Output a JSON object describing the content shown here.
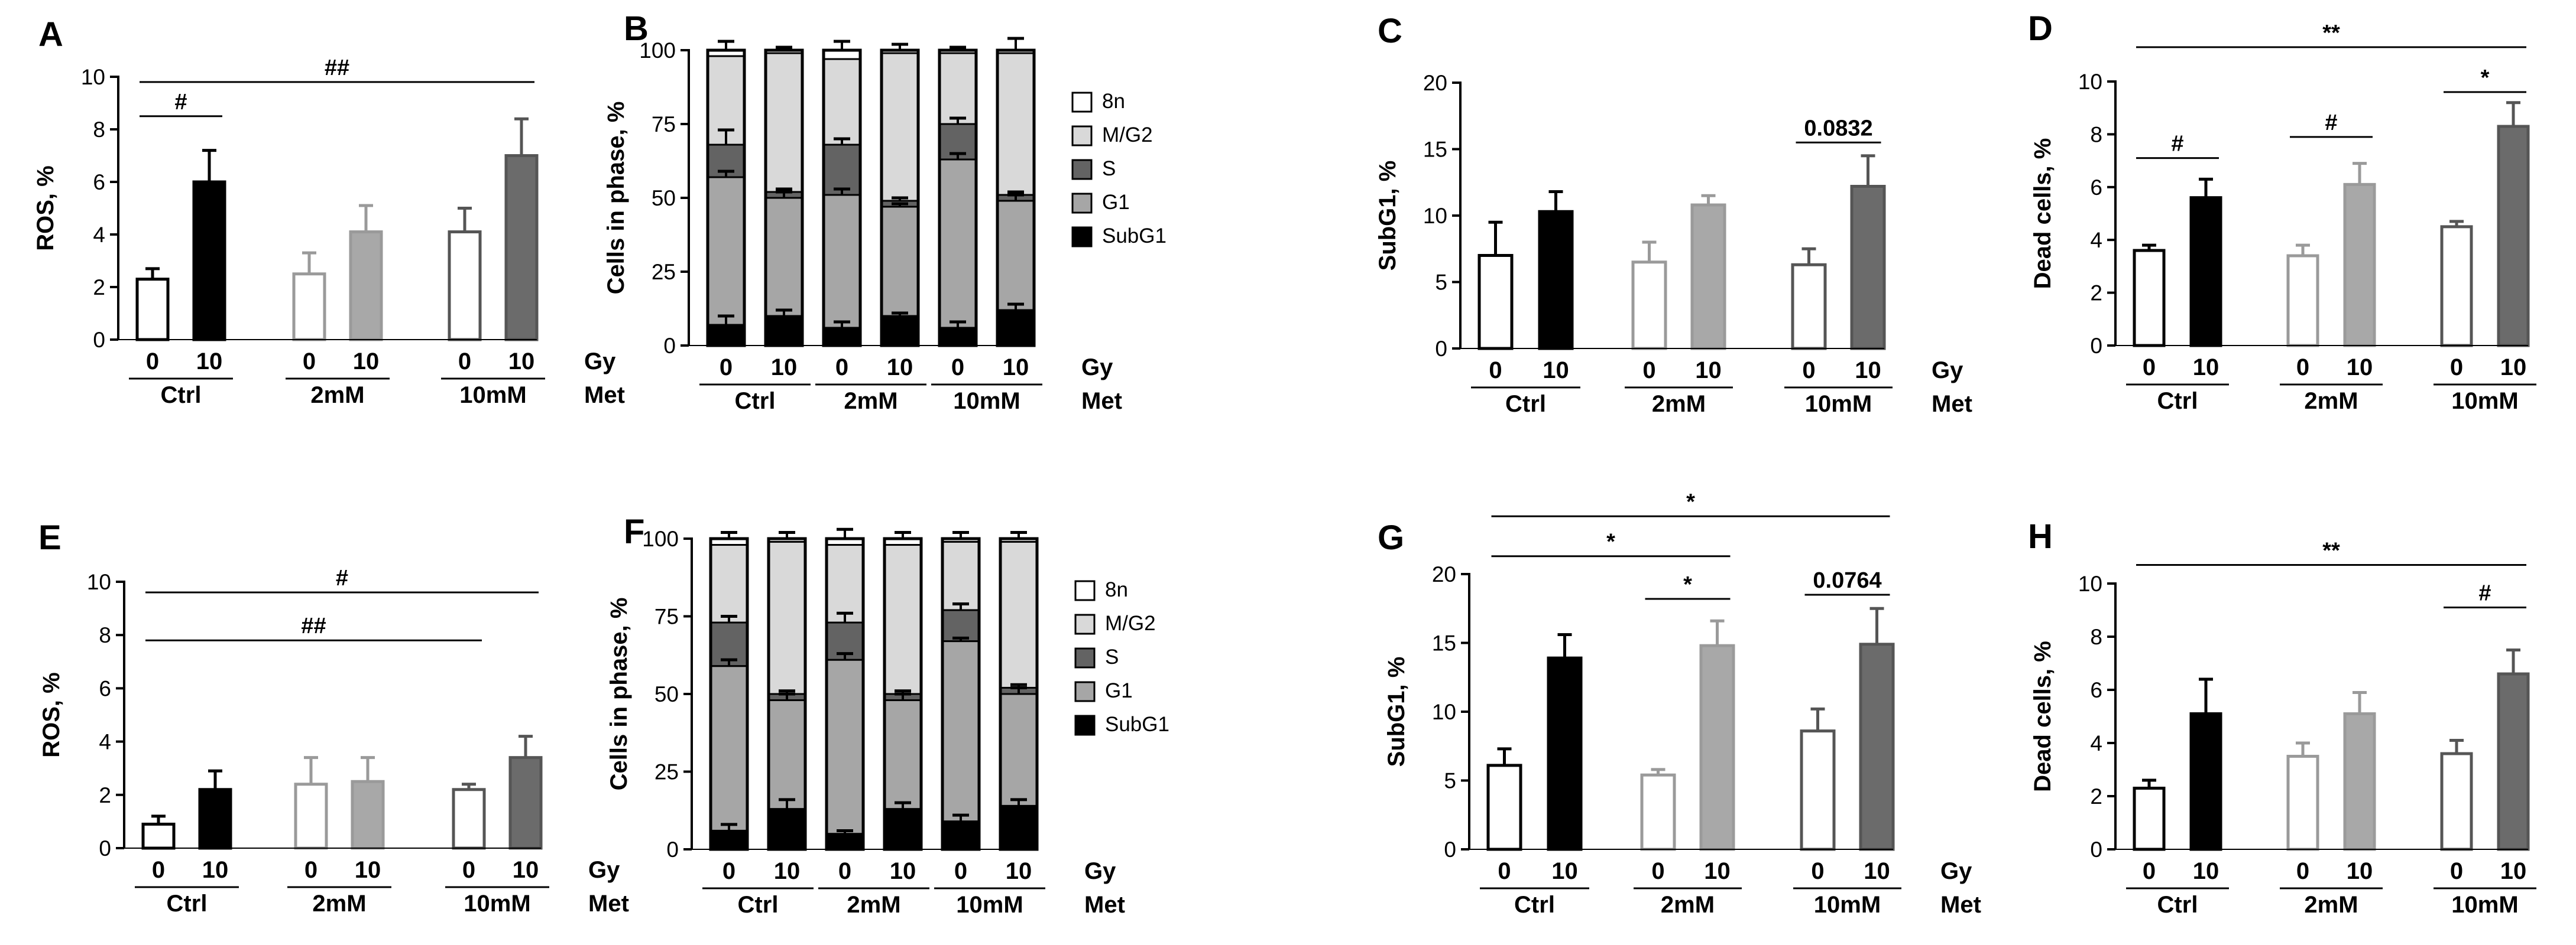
{
  "figure": {
    "x_row_labels": {
      "dose": "Gy",
      "group": "Met"
    },
    "dose_labels": [
      "0",
      "10"
    ],
    "group_labels": [
      "Ctrl",
      "2mM",
      "10mM"
    ],
    "colors": {
      "ctrl_irradiated": "#000000",
      "met2_irradiated": "#a8a8a8",
      "met10_irradiated": "#6b6b6b",
      "control_fill": "#ffffff",
      "stack_8n": "#ffffff",
      "stack_mg2": "#d9d9d9",
      "stack_s": "#636363",
      "stack_g1": "#a6a6a6",
      "stack_subg1": "#000000"
    }
  },
  "chart_data": [
    {
      "panel": "A",
      "type": "bar",
      "ylabel": "ROS, %",
      "ylim": [
        0,
        10
      ],
      "yticks": [
        0,
        2,
        4,
        6,
        8,
        10
      ],
      "values": [
        2.3,
        6.0,
        2.5,
        4.1,
        4.1,
        7.0
      ],
      "errors": [
        0.4,
        1.2,
        0.8,
        1.0,
        0.9,
        1.4
      ],
      "annotations": [
        {
          "from": 0,
          "to": 1,
          "y": 8.5,
          "label": "#"
        },
        {
          "from": 0,
          "to": 5,
          "y": 9.8,
          "label": "##"
        }
      ]
    },
    {
      "panel": "B",
      "type": "stacked-bar",
      "ylabel": "Cells in phase, %",
      "ylim": [
        0,
        100
      ],
      "yticks": [
        0,
        25,
        50,
        75,
        100
      ],
      "legend": [
        "8n",
        "M/G2",
        "S",
        "G1",
        "SubG1"
      ],
      "stacks": [
        {
          "subg1": 7,
          "g1": 50,
          "s": 11,
          "mg2": 30,
          "n8": 2
        },
        {
          "subg1": 10,
          "g1": 40,
          "s": 2,
          "mg2": 47,
          "n8": 1
        },
        {
          "subg1": 6,
          "g1": 45,
          "s": 17,
          "mg2": 29,
          "n8": 3
        },
        {
          "subg1": 10,
          "g1": 37,
          "s": 2,
          "mg2": 50,
          "n8": 1
        },
        {
          "subg1": 6,
          "g1": 57,
          "s": 12,
          "mg2": 24,
          "n8": 1
        },
        {
          "subg1": 12,
          "g1": 37,
          "s": 2,
          "mg2": 48,
          "n8": 1
        }
      ],
      "errors": {
        "subg1": [
          3,
          2,
          2,
          1,
          2,
          2
        ],
        "g1": [
          2,
          2,
          2,
          1,
          2,
          2
        ],
        "s": [
          5,
          1,
          2,
          1,
          2,
          1
        ],
        "top": [
          3,
          1,
          3,
          2,
          1,
          4
        ]
      },
      "annotations": []
    },
    {
      "panel": "C",
      "type": "bar",
      "ylabel": "SubG1, %",
      "ylim": [
        0,
        20
      ],
      "yticks": [
        0,
        5,
        10,
        15,
        20
      ],
      "values": [
        7.0,
        10.3,
        6.5,
        10.8,
        6.3,
        12.2
      ],
      "errors": [
        2.5,
        1.5,
        1.5,
        0.7,
        1.2,
        2.3
      ],
      "annotations": [
        {
          "from": 4,
          "to": 5,
          "y": 15.5,
          "label": "0.0832"
        }
      ]
    },
    {
      "panel": "D",
      "type": "bar",
      "ylabel": "Dead cells, %",
      "ylim": [
        0,
        10
      ],
      "yticks": [
        0,
        2,
        4,
        6,
        8,
        10
      ],
      "values": [
        3.6,
        5.6,
        3.4,
        6.1,
        4.5,
        8.3
      ],
      "errors": [
        0.2,
        0.7,
        0.4,
        0.8,
        0.2,
        0.9
      ],
      "annotations": [
        {
          "from": 0,
          "to": 1,
          "y": 7.1,
          "label": "#"
        },
        {
          "from": 2,
          "to": 3,
          "y": 7.9,
          "label": "#"
        },
        {
          "from": 4,
          "to": 5,
          "y": 9.6,
          "label": "*"
        },
        {
          "from": 0,
          "to": 5,
          "y": 11.3,
          "label": "**"
        }
      ]
    },
    {
      "panel": "E",
      "type": "bar",
      "ylabel": "ROS, %",
      "ylim": [
        0,
        10
      ],
      "yticks": [
        0,
        2,
        4,
        6,
        8,
        10
      ],
      "values": [
        0.9,
        2.2,
        2.4,
        2.5,
        2.2,
        3.4
      ],
      "errors": [
        0.3,
        0.7,
        1.0,
        0.9,
        0.2,
        0.8
      ],
      "annotations": [
        {
          "from": 0,
          "to": 4,
          "y": 7.8,
          "label": "##"
        },
        {
          "from": 0,
          "to": 5,
          "y": 9.6,
          "label": "#"
        }
      ]
    },
    {
      "panel": "F",
      "type": "stacked-bar",
      "ylabel": "Cells in phase, %",
      "ylim": [
        0,
        100
      ],
      "yticks": [
        0,
        25,
        50,
        75,
        100
      ],
      "legend": [
        "8n",
        "M/G2",
        "S",
        "G1",
        "SubG1"
      ],
      "stacks": [
        {
          "subg1": 6,
          "g1": 53,
          "s": 14,
          "mg2": 25,
          "n8": 2
        },
        {
          "subg1": 13,
          "g1": 35,
          "s": 2,
          "mg2": 49,
          "n8": 1
        },
        {
          "subg1": 5,
          "g1": 56,
          "s": 12,
          "mg2": 25,
          "n8": 2
        },
        {
          "subg1": 13,
          "g1": 35,
          "s": 2,
          "mg2": 48,
          "n8": 2
        },
        {
          "subg1": 9,
          "g1": 58,
          "s": 10,
          "mg2": 22,
          "n8": 1
        },
        {
          "subg1": 14,
          "g1": 36,
          "s": 2,
          "mg2": 47,
          "n8": 1
        }
      ],
      "errors": {
        "subg1": [
          2,
          3,
          1,
          2,
          2,
          2
        ],
        "g1": [
          2,
          2,
          2,
          2,
          1,
          2
        ],
        "s": [
          2,
          1,
          3,
          1,
          2,
          1
        ],
        "top": [
          2,
          2,
          3,
          2,
          2,
          2
        ]
      },
      "annotations": []
    },
    {
      "panel": "G",
      "type": "bar",
      "ylabel": "SubG1, %",
      "ylim": [
        0,
        20
      ],
      "yticks": [
        0,
        5,
        10,
        15,
        20
      ],
      "values": [
        6.1,
        13.9,
        5.4,
        14.8,
        8.6,
        14.9
      ],
      "errors": [
        1.2,
        1.7,
        0.4,
        1.8,
        1.6,
        2.6
      ],
      "annotations": [
        {
          "from": 2,
          "to": 3,
          "y": 18.2,
          "label": "*"
        },
        {
          "from": 4,
          "to": 5,
          "y": 18.5,
          "label": "0.0764"
        },
        {
          "from": 0,
          "to": 3,
          "y": 21.3,
          "label": "*"
        },
        {
          "from": 0,
          "to": 5,
          "y": 24.2,
          "label": "*"
        }
      ]
    },
    {
      "panel": "H",
      "type": "bar",
      "ylabel": "Dead cells, %",
      "ylim": [
        0,
        10
      ],
      "yticks": [
        0,
        2,
        4,
        6,
        8,
        10
      ],
      "values": [
        2.3,
        5.1,
        3.5,
        5.1,
        3.6,
        6.6
      ],
      "errors": [
        0.3,
        1.3,
        0.5,
        0.8,
        0.5,
        0.9
      ],
      "annotations": [
        {
          "from": 4,
          "to": 5,
          "y": 9.1,
          "label": "#"
        },
        {
          "from": 0,
          "to": 5,
          "y": 10.7,
          "label": "**"
        }
      ]
    }
  ]
}
